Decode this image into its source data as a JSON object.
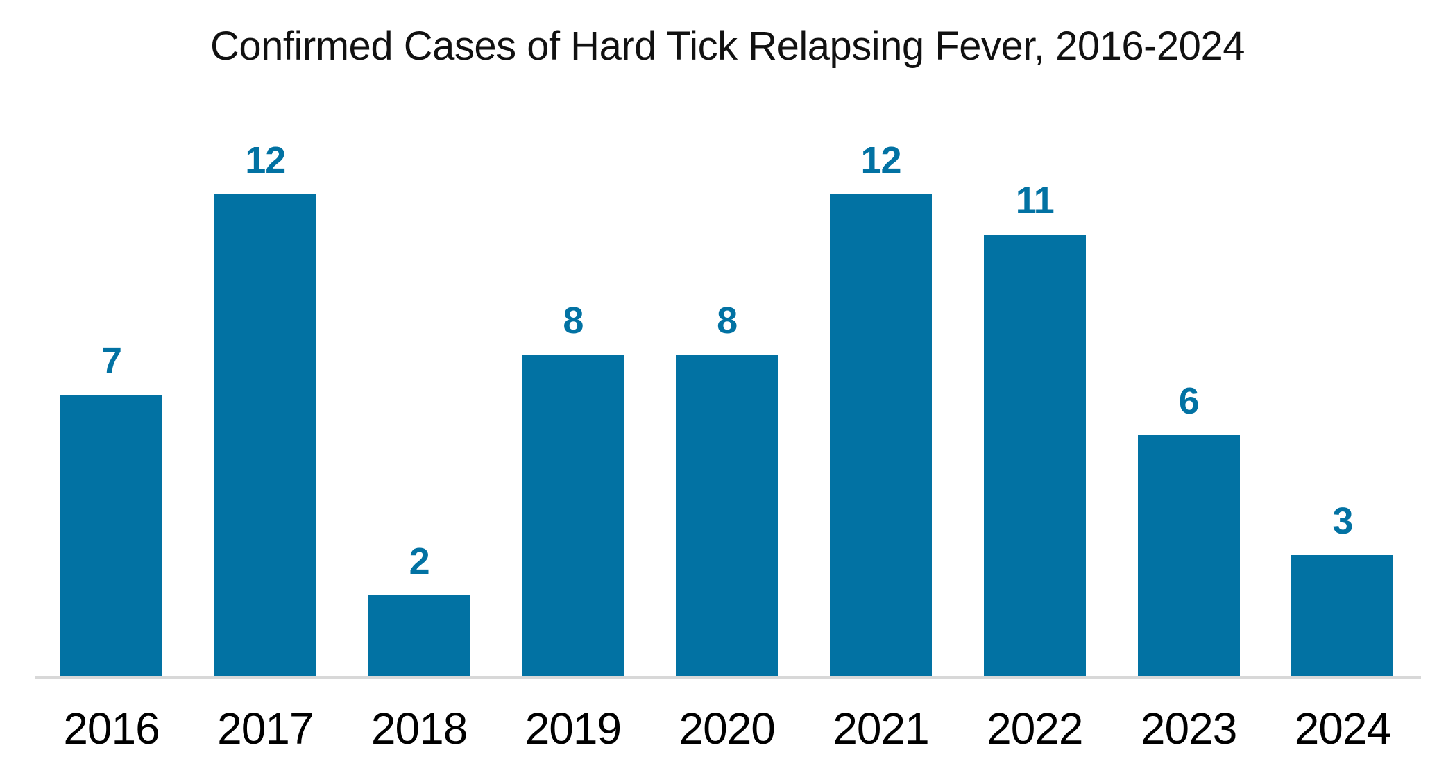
{
  "chart_data": {
    "type": "bar",
    "title": "Confirmed Cases of Hard Tick Relapsing Fever, 2016-2024",
    "categories": [
      "2016",
      "2017",
      "2018",
      "2019",
      "2020",
      "2021",
      "2022",
      "2023",
      "2024"
    ],
    "values": [
      7,
      12,
      2,
      8,
      8,
      12,
      11,
      6,
      3
    ],
    "value_labels": [
      "7",
      "12",
      "2",
      "8",
      "8",
      "12",
      "11",
      "6",
      "3"
    ],
    "xlabel": "",
    "ylabel": "",
    "ylim": [
      0,
      12
    ],
    "grid": false,
    "legend_position": "none",
    "bar_color": "#0272a3",
    "value_label_color": "#0272a3",
    "axis_line_color": "#d8d8d8",
    "title_color": "#111111",
    "x_tick_color": "#000000",
    "background_color": "#ffffff"
  }
}
